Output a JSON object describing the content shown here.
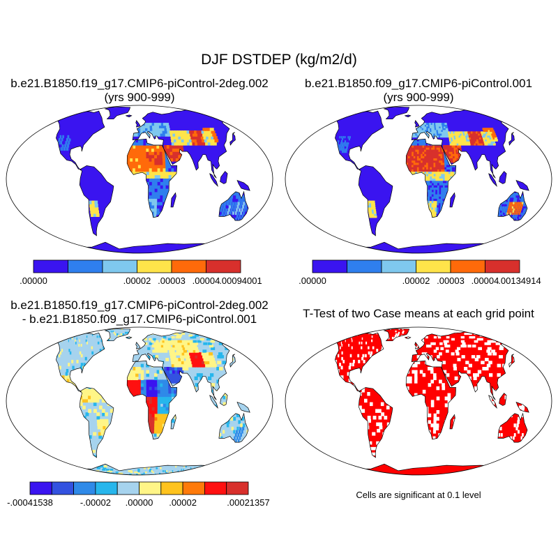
{
  "title": "DJF DSTDEP (kg/m2/d)",
  "panels": {
    "top_left": {
      "title_line1": "b.e21.B1850.f19_g17.CMIP6-piControl-2deg.002",
      "title_line2": "(yrs 900-999)",
      "colorbar": {
        "colors": [
          "#3a14f0",
          "#2f7fee",
          "#7fc8ee",
          "#ffe44a",
          "#ff6a0a",
          "#d8302c"
        ],
        "labels": [
          ".00000",
          ".00002",
          ".00003",
          ".00004",
          ".00094001"
        ]
      }
    },
    "top_right": {
      "title_line1": "b.e21.B1850.f09_g17.CMIP6-piControl.001",
      "title_line2": "(yrs 900-999)",
      "colorbar": {
        "colors": [
          "#3a14f0",
          "#2f7fee",
          "#7fc8ee",
          "#ffe44a",
          "#ff6a0a",
          "#d8302c"
        ],
        "labels": [
          ".00000",
          ".00002",
          ".00003",
          ".00004",
          ".00134914"
        ]
      }
    },
    "bottom_left": {
      "title_line1": "b.e21.B1850.f19_g17.CMIP6-piControl-2deg.002",
      "title_line2": "- b.e21.B1850.f09_g17.CMIP6-piControl.001",
      "colorbar": {
        "colors": [
          "#3a14f0",
          "#3352e0",
          "#2f8ae8",
          "#27b6ec",
          "#a6d3ee",
          "#fff587",
          "#ffc31e",
          "#ff7a0a",
          "#ff1010",
          "#d8302c"
        ],
        "labels": [
          "-.00041538",
          "-.00002",
          ".00000",
          ".00002",
          ".00021357"
        ]
      }
    },
    "bottom_right": {
      "title": "T-Test of two Case means at each grid point",
      "note": "Cells are significant at 0.1 level"
    }
  },
  "colors": {
    "ocean": "#ffffff",
    "outline": "#000000",
    "land_low": "#3a14f0",
    "land_diff_neutral": "#a6d3ee",
    "significant": "#ff0000"
  }
}
